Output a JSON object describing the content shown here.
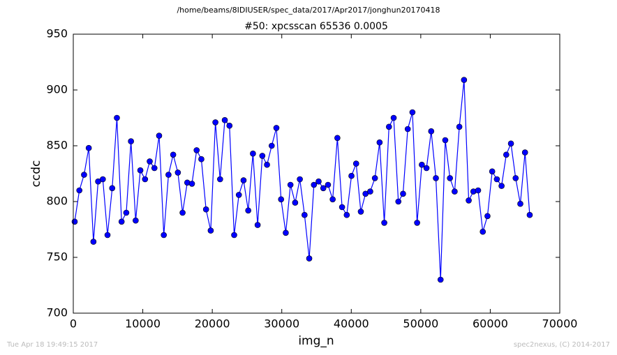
{
  "chart_data": {
    "type": "line",
    "suptitle": "/home/beams/8IDIUSER/spec_data/2017/Apr2017/jonghun20170418",
    "title": "#50: xpcsscan 65536 0.0005",
    "xlabel": "img_n",
    "ylabel": "ccdc",
    "xlim": [
      0,
      70000
    ],
    "xticks": [
      0,
      10000,
      20000,
      30000,
      40000,
      50000,
      60000,
      70000
    ],
    "ylim": [
      700,
      950
    ],
    "yticks": [
      700,
      750,
      800,
      850,
      900,
      950
    ],
    "grid": false,
    "x": [
      200,
      875,
      1550,
      2225,
      2900,
      3575,
      4250,
      4925,
      5600,
      6275,
      6950,
      7625,
      8300,
      8975,
      9650,
      10325,
      11000,
      11675,
      12350,
      13025,
      13700,
      14375,
      15050,
      15725,
      16400,
      17075,
      17750,
      18425,
      19100,
      19775,
      20450,
      21125,
      21800,
      22475,
      23150,
      23825,
      24500,
      25175,
      25850,
      26525,
      27200,
      27875,
      28550,
      29225,
      29900,
      30575,
      31250,
      31925,
      32600,
      33275,
      33950,
      34625,
      35300,
      35975,
      36650,
      37325,
      38000,
      38675,
      39350,
      40025,
      40700,
      41375,
      42050,
      42725,
      43400,
      44075,
      44750,
      45425,
      46100,
      46775,
      47450,
      48125,
      48800,
      49475,
      50150,
      50825,
      51500,
      52175,
      52850,
      53525,
      54200,
      54875,
      55550,
      56225,
      56900,
      57575,
      58250,
      58925,
      59600,
      60275,
      60950,
      61625,
      62300,
      62975,
      63650,
      64325,
      65000,
      65675
    ],
    "series": [
      {
        "color": "#0000ff",
        "values": [
          782,
          810,
          824,
          848,
          764,
          818,
          820,
          770,
          812,
          875,
          782,
          790,
          854,
          783,
          828,
          820,
          836,
          830,
          859,
          770,
          824,
          842,
          826,
          790,
          817,
          816,
          846,
          838,
          793,
          774,
          871,
          820,
          873,
          868,
          770,
          806,
          819,
          792,
          843,
          779,
          841,
          833,
          850,
          866,
          802,
          772,
          815,
          799,
          820,
          788,
          749,
          815,
          818,
          812,
          815,
          802,
          857,
          795,
          788,
          823,
          834,
          791,
          807,
          809,
          821,
          853,
          781,
          867,
          875,
          800,
          807,
          865,
          880,
          781,
          833,
          830,
          863,
          821,
          730,
          855,
          821,
          809,
          867,
          909,
          801,
          809,
          810,
          773,
          787,
          827,
          820,
          814,
          842,
          852,
          821,
          798,
          844,
          788
        ]
      }
    ]
  },
  "footer": {
    "left": "Tue Apr 18 19:49:15 2017",
    "right": "spec2nexus, (C) 2014-2017"
  }
}
